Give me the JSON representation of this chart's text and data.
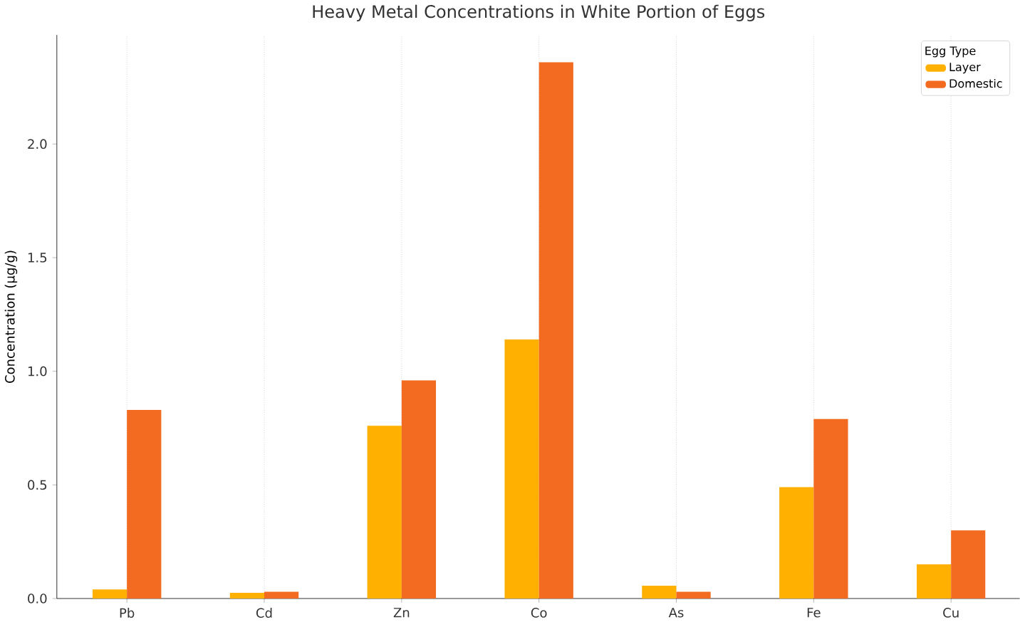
{
  "chart_data": {
    "type": "bar",
    "title": "Heavy Metal Concentrations in White Portion of Eggs",
    "ylabel": "Concentration (µg/g)",
    "legend_title": "Egg Type",
    "categories": [
      "Pb",
      "Cd",
      "Zn",
      "Co",
      "As",
      "Fe",
      "Cu"
    ],
    "series": [
      {
        "name": "Layer",
        "color": "#ffb000",
        "values": [
          0.04,
          0.025,
          0.76,
          1.14,
          0.056,
          0.49,
          0.15
        ]
      },
      {
        "name": "Domestic",
        "color": "#f26b21",
        "values": [
          0.83,
          0.03,
          0.96,
          2.36,
          0.03,
          0.79,
          0.3
        ]
      }
    ],
    "ylim": [
      0,
      2.48
    ],
    "yticks": [
      {
        "value": 0,
        "label": "0.0"
      },
      {
        "value": 0.5,
        "label": "0.5"
      },
      {
        "value": 1,
        "label": "1.0"
      },
      {
        "value": 1.5,
        "label": "1.5"
      },
      {
        "value": 2,
        "label": "2.0"
      }
    ],
    "grid": "x",
    "legend": "top right"
  }
}
